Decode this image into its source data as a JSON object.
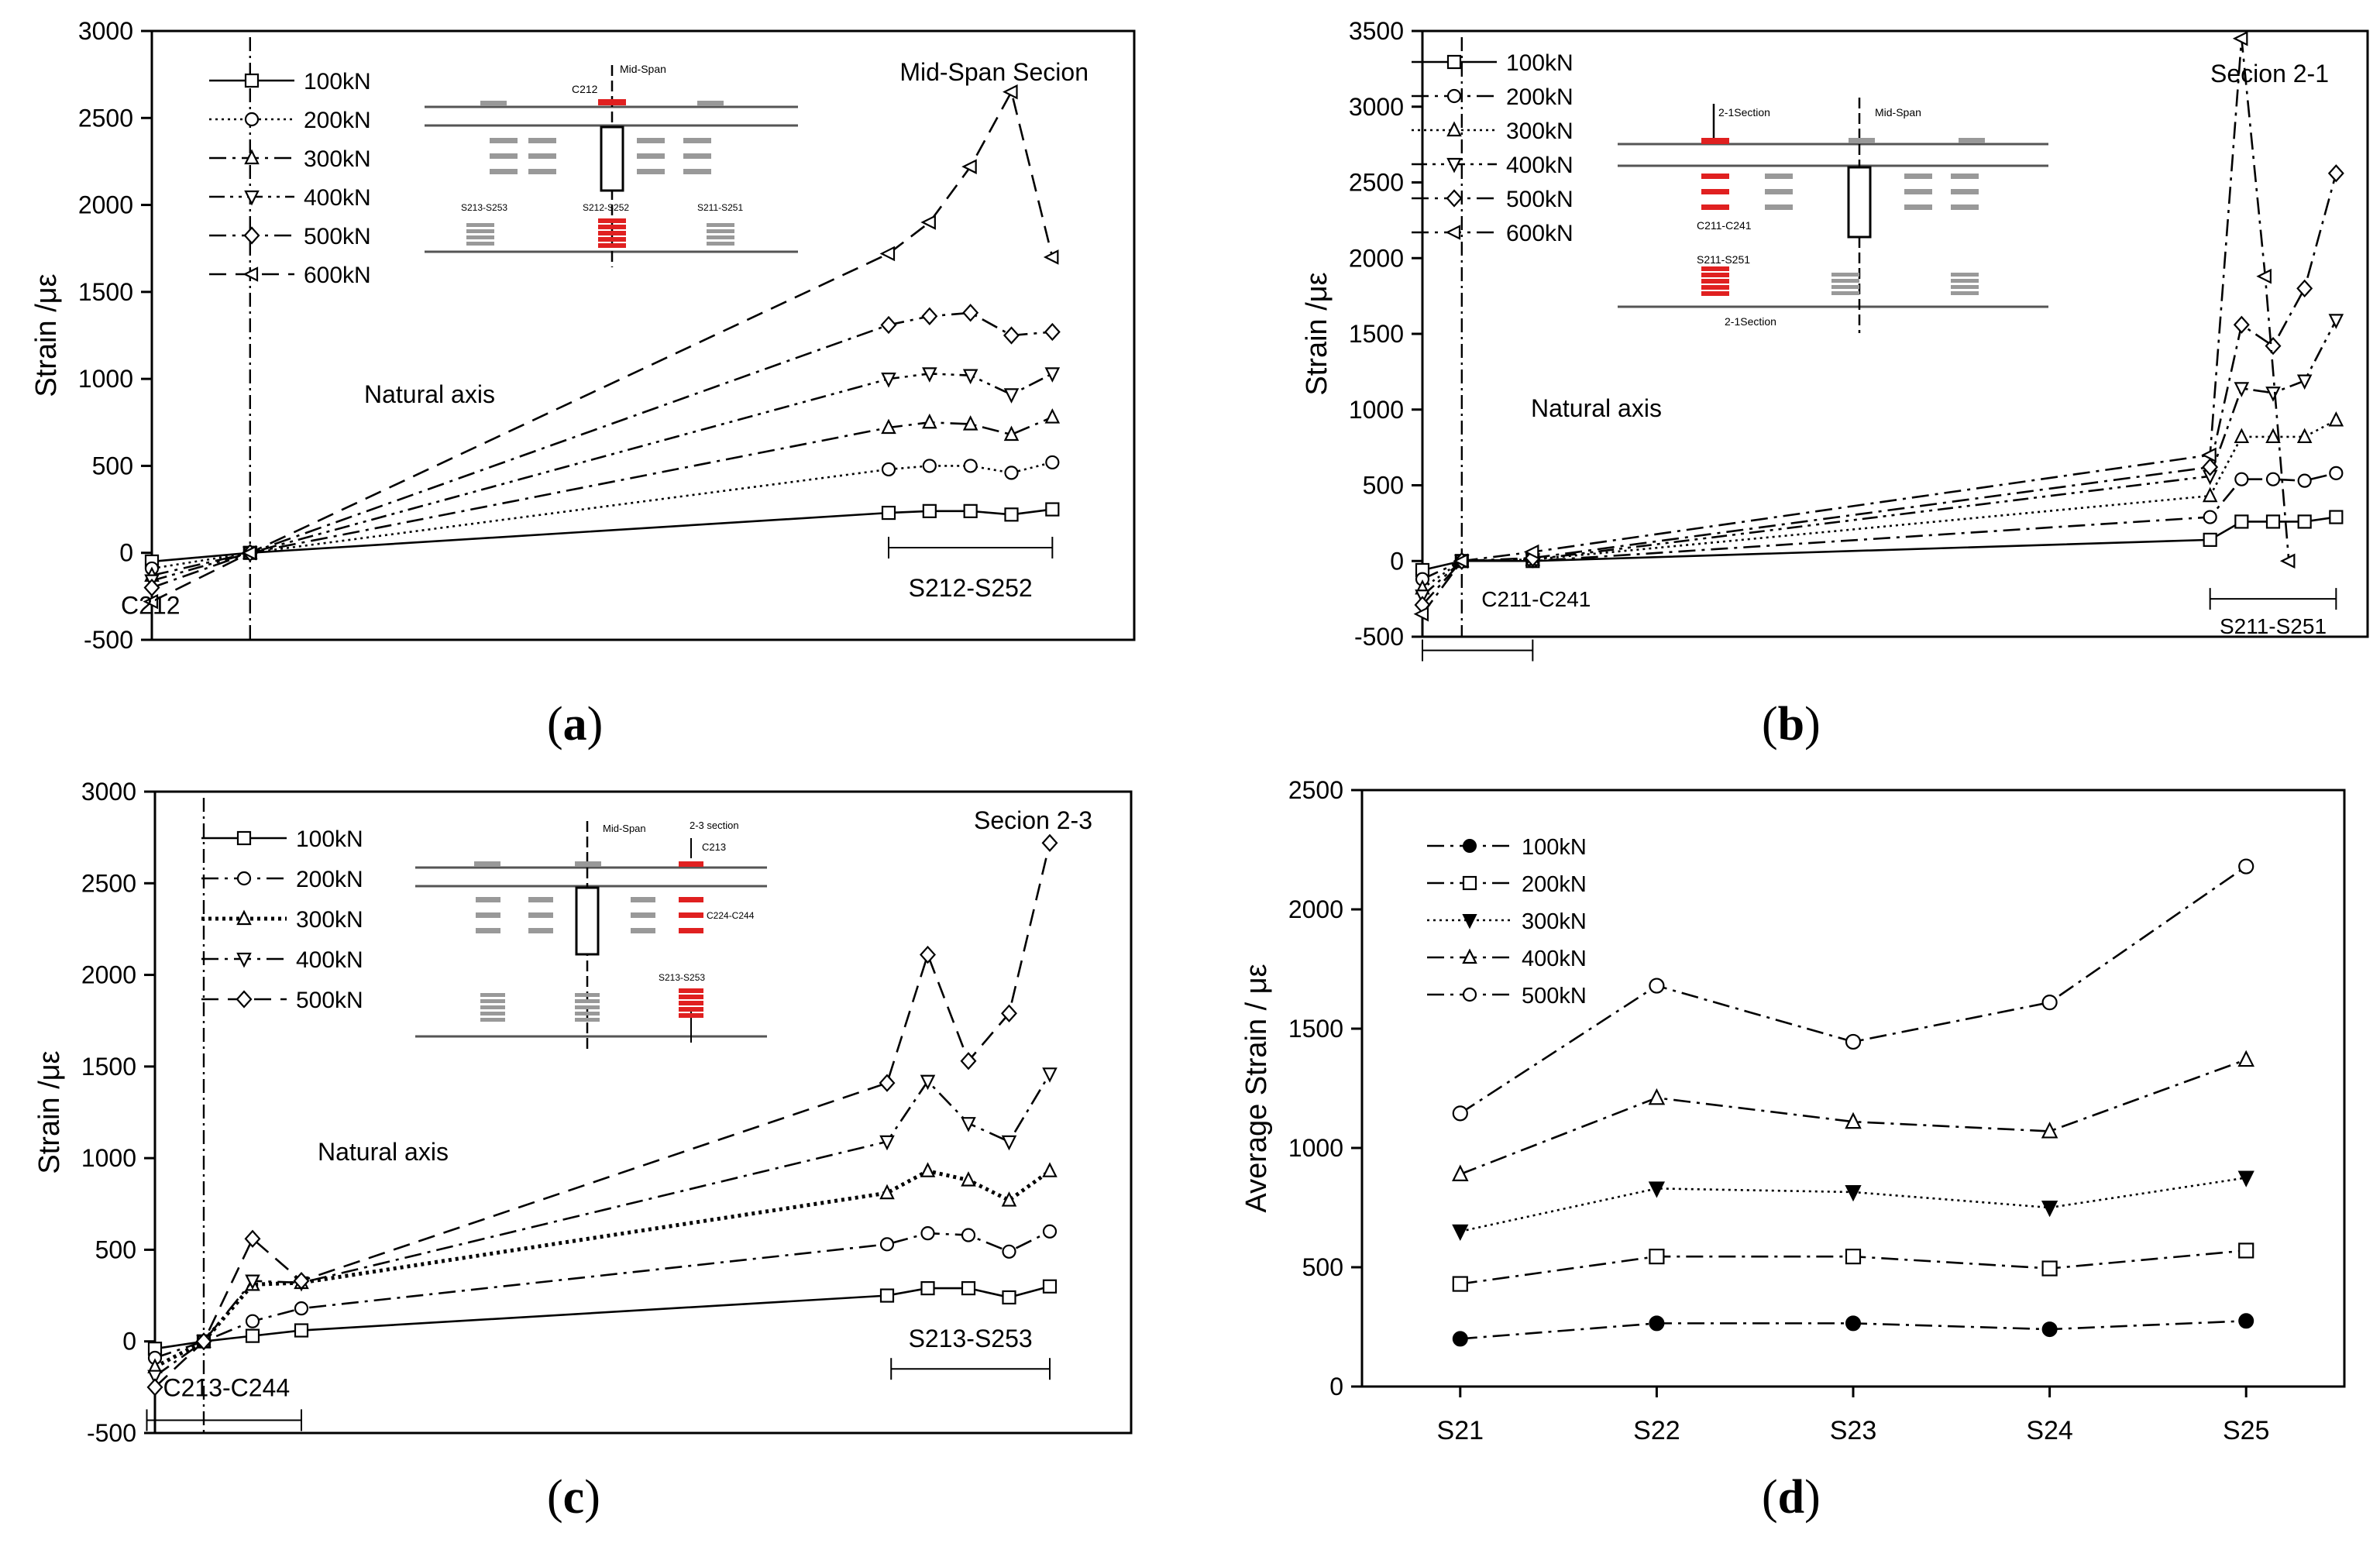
{
  "chart_data": [
    {
      "id": "a",
      "type": "line",
      "panel_label": "a",
      "title": "Mid-Span Secion",
      "ylabel": "Strain /με",
      "ylim": [
        -500,
        3000
      ],
      "yticks": [
        -500,
        0,
        500,
        1000,
        1500,
        2000,
        2500,
        3000
      ],
      "xlim": [
        0,
        12
      ],
      "neutral_axis_x": 1.2,
      "neutral_axis_label": "Natural axis",
      "group_labels": [
        "C212",
        "S212-S252"
      ],
      "series": [
        {
          "name": "100kN",
          "marker": "square",
          "dash": "solid",
          "x": [
            0,
            1.2,
            9.0,
            9.5,
            10.0,
            10.5,
            11.0
          ],
          "values": [
            -50,
            0,
            230,
            240,
            240,
            220,
            250
          ]
        },
        {
          "name": "200kN",
          "marker": "circle",
          "dash": "dot",
          "x": [
            0,
            1.2,
            9.0,
            9.5,
            10.0,
            10.5,
            11.0
          ],
          "values": [
            -90,
            0,
            480,
            500,
            500,
            460,
            520
          ]
        },
        {
          "name": "300kN",
          "marker": "triangle-up",
          "dash": "dashdot",
          "x": [
            0,
            1.2,
            9.0,
            9.5,
            10.0,
            10.5,
            11.0
          ],
          "values": [
            -130,
            0,
            720,
            750,
            740,
            680,
            780
          ]
        },
        {
          "name": "400kN",
          "marker": "triangle-down",
          "dash": "dashdotdot",
          "x": [
            0,
            1.2,
            9.0,
            9.5,
            10.0,
            10.5,
            11.0
          ],
          "values": [
            -160,
            0,
            1000,
            1030,
            1020,
            910,
            1030
          ]
        },
        {
          "name": "500kN",
          "marker": "diamond",
          "dash": "dashdot",
          "x": [
            0,
            1.2,
            9.0,
            9.5,
            10.0,
            10.5,
            11.0
          ],
          "values": [
            -200,
            0,
            1310,
            1360,
            1380,
            1250,
            1270
          ]
        },
        {
          "name": "600kN",
          "marker": "triangle-left",
          "dash": "dash",
          "x": [
            0,
            1.2,
            9.0,
            9.5,
            10.0,
            10.5,
            11.0
          ],
          "values": [
            -280,
            0,
            1720,
            1900,
            2220,
            2650,
            1700
          ]
        }
      ]
    },
    {
      "id": "b",
      "type": "line",
      "panel_label": "b",
      "title": "Secion 2-1",
      "ylabel": "Strain /με",
      "ylim": [
        -500,
        3500
      ],
      "yticks": [
        -500,
        0,
        500,
        1000,
        1500,
        2000,
        2500,
        3000,
        3500
      ],
      "xlim": [
        0,
        12
      ],
      "neutral_axis_x": 0.5,
      "neutral_axis_label": "Natural axis",
      "group_labels": [
        "C211-C241",
        "S211-S251"
      ],
      "series": [
        {
          "name": "100kN",
          "marker": "square",
          "dash": "solid",
          "x": [
            0,
            0.5,
            1.4,
            10.0,
            10.4,
            10.8,
            11.2,
            11.6
          ],
          "values": [
            -60,
            0,
            0,
            140,
            260,
            260,
            260,
            290
          ]
        },
        {
          "name": "200kN",
          "marker": "circle",
          "dash": "dashdot",
          "x": [
            0,
            0.5,
            1.4,
            10.0,
            10.4,
            10.8,
            11.2,
            11.6
          ],
          "values": [
            -120,
            0,
            0,
            290,
            540,
            540,
            530,
            580
          ]
        },
        {
          "name": "300kN",
          "marker": "triangle-up",
          "dash": "dot",
          "x": [
            0,
            0.5,
            1.4,
            10.0,
            10.4,
            10.8,
            11.2,
            11.6
          ],
          "values": [
            -180,
            0,
            10,
            430,
            820,
            820,
            820,
            930
          ]
        },
        {
          "name": "400kN",
          "marker": "triangle-down",
          "dash": "dashdotdot",
          "x": [
            0,
            0.5,
            1.4,
            10.0,
            10.4,
            10.8,
            11.2,
            11.6
          ],
          "values": [
            -230,
            0,
            10,
            560,
            1140,
            1110,
            1190,
            1590
          ]
        },
        {
          "name": "500kN",
          "marker": "diamond",
          "dash": "dashdot",
          "x": [
            0,
            0.5,
            1.4,
            10.0,
            10.4,
            10.8,
            11.2,
            11.6
          ],
          "values": [
            -290,
            0,
            20,
            620,
            1560,
            1420,
            1800,
            2560
          ]
        },
        {
          "name": "600kN",
          "marker": "triangle-left",
          "dash": "dashdot",
          "x": [
            0,
            0.5,
            1.4,
            10.0,
            10.4,
            10.7,
            11.0
          ],
          "values": [
            -350,
            0,
            60,
            700,
            3450,
            1880,
            0
          ]
        }
      ]
    },
    {
      "id": "c",
      "type": "line",
      "panel_label": "c",
      "title": "Secion 2-3",
      "ylabel": "Strain /με",
      "ylim": [
        -500,
        3000
      ],
      "yticks": [
        -500,
        0,
        500,
        1000,
        1500,
        2000,
        2500,
        3000
      ],
      "xlim": [
        0,
        12
      ],
      "neutral_axis_x": 0.6,
      "neutral_axis_label": "Natural axis",
      "group_labels": [
        "C213-C244",
        "S213-S253"
      ],
      "series": [
        {
          "name": "100kN",
          "marker": "square",
          "dash": "solid",
          "x": [
            0,
            0.6,
            1.2,
            1.8,
            9.0,
            9.5,
            10.0,
            10.5,
            11.0
          ],
          "values": [
            -40,
            0,
            30,
            60,
            250,
            290,
            290,
            240,
            300
          ]
        },
        {
          "name": "200kN",
          "marker": "circle",
          "dash": "dashdot",
          "x": [
            0,
            0.6,
            1.2,
            1.8,
            9.0,
            9.5,
            10.0,
            10.5,
            11.0
          ],
          "values": [
            -90,
            0,
            110,
            180,
            530,
            590,
            580,
            490,
            600
          ]
        },
        {
          "name": "300kN",
          "marker": "triangle-up",
          "dash": "dotbold",
          "x": [
            0,
            0.6,
            1.2,
            1.8,
            9.0,
            9.5,
            10.0,
            10.5,
            11.0
          ],
          "values": [
            -140,
            0,
            310,
            320,
            810,
            930,
            880,
            770,
            930
          ]
        },
        {
          "name": "400kN",
          "marker": "triangle-down",
          "dash": "dashdot",
          "x": [
            0,
            0.6,
            1.2,
            1.8,
            9.0,
            9.5,
            10.0,
            10.5,
            11.0
          ],
          "values": [
            -190,
            0,
            330,
            320,
            1090,
            1420,
            1190,
            1090,
            1460
          ]
        },
        {
          "name": "500kN",
          "marker": "diamond",
          "dash": "dash",
          "x": [
            0,
            0.6,
            1.2,
            1.8,
            9.0,
            9.5,
            10.0,
            10.5,
            11.0
          ],
          "values": [
            -250,
            0,
            560,
            330,
            1410,
            2110,
            1530,
            1790,
            2720
          ]
        }
      ]
    },
    {
      "id": "d",
      "type": "line",
      "panel_label": "d",
      "title": "",
      "ylabel": "Average Strain / με",
      "ylim": [
        0,
        2500
      ],
      "yticks": [
        0,
        500,
        1000,
        1500,
        2000,
        2500
      ],
      "categories": [
        "S21",
        "S22",
        "S23",
        "S24",
        "S25"
      ],
      "series": [
        {
          "name": "100kN",
          "marker": "circle-filled",
          "dash": "dashdot",
          "values": [
            200,
            265,
            265,
            240,
            275
          ]
        },
        {
          "name": "200kN",
          "marker": "square",
          "dash": "dashdot",
          "values": [
            430,
            545,
            545,
            495,
            570
          ]
        },
        {
          "name": "300kN",
          "marker": "triangle-down-filled",
          "dash": "dot",
          "values": [
            650,
            830,
            815,
            750,
            875
          ]
        },
        {
          "name": "400kN",
          "marker": "triangle-up",
          "dash": "dashdot",
          "values": [
            890,
            1210,
            1110,
            1070,
            1370
          ]
        },
        {
          "name": "500kN",
          "marker": "circle",
          "dash": "dashdot",
          "values": [
            1145,
            1680,
            1445,
            1610,
            2180
          ]
        }
      ]
    }
  ],
  "insets": {
    "a": {
      "mid_span": "Mid-Span",
      "top_label": "C212",
      "left_label": "S213-S253",
      "center_label": "S212-S252",
      "right_label": "S211-S251"
    },
    "b": {
      "section_label": "2-1Section",
      "mid_span": "Mid-Span",
      "left_label": "C211-C241",
      "left_label2": "S211-S251",
      "bottom_label": "2-1Section"
    },
    "c": {
      "mid_span": "Mid-Span",
      "section_label": "2-3 section",
      "top_label": "C213",
      "right_label": "C224-C244",
      "bottom_label": "S213-S253"
    }
  }
}
